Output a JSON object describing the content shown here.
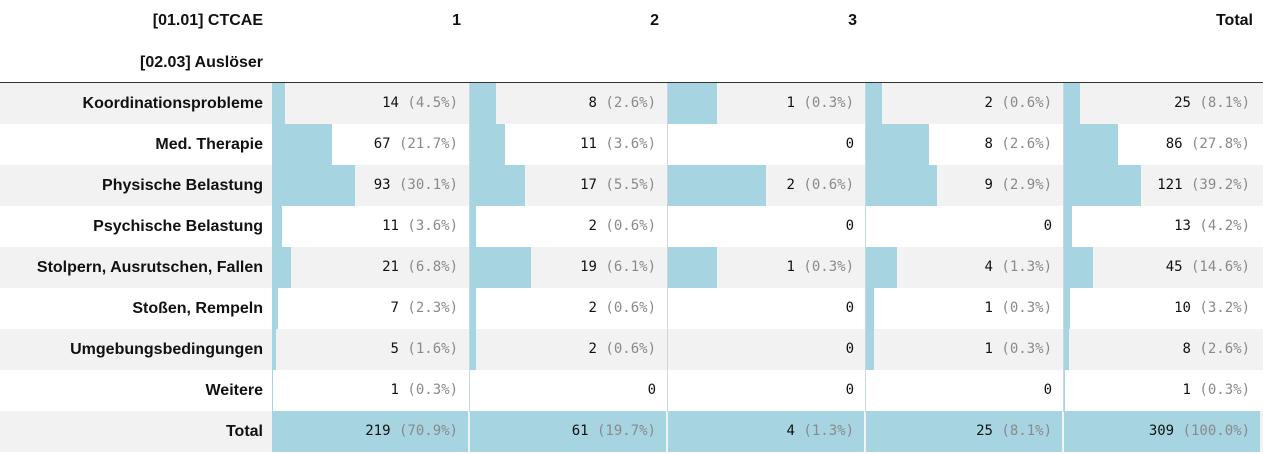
{
  "header": {
    "col_var": "[01.01] CTCAE",
    "row_var": "[02.03] Auslöser",
    "columns": [
      "1",
      "2",
      "3",
      "",
      "Total"
    ]
  },
  "rows": [
    {
      "label": "Koordinationsprobleme",
      "cells": [
        {
          "n": "14",
          "pct": "(4.5%)",
          "share": 0.0639
        },
        {
          "n": "8",
          "pct": "(2.6%)",
          "share": 0.1311
        },
        {
          "n": "1",
          "pct": "(0.3%)",
          "share": 0.25
        },
        {
          "n": "2",
          "pct": "(0.6%)",
          "share": 0.08
        },
        {
          "n": "25",
          "pct": "(8.1%)",
          "share": 0.081
        }
      ]
    },
    {
      "label": "Med. Therapie",
      "cells": [
        {
          "n": "67",
          "pct": "(21.7%)",
          "share": 0.3059
        },
        {
          "n": "11",
          "pct": "(3.6%)",
          "share": 0.1803
        },
        {
          "n": "0",
          "pct": "",
          "share": 0
        },
        {
          "n": "8",
          "pct": "(2.6%)",
          "share": 0.32
        },
        {
          "n": "86",
          "pct": "(27.8%)",
          "share": 0.278
        }
      ]
    },
    {
      "label": "Physische Belastung",
      "cells": [
        {
          "n": "93",
          "pct": "(30.1%)",
          "share": 0.4247
        },
        {
          "n": "17",
          "pct": "(5.5%)",
          "share": 0.2787
        },
        {
          "n": "2",
          "pct": "(0.6%)",
          "share": 0.5
        },
        {
          "n": "9",
          "pct": "(2.9%)",
          "share": 0.36
        },
        {
          "n": "121",
          "pct": "(39.2%)",
          "share": 0.392
        }
      ]
    },
    {
      "label": "Psychische Belastung",
      "cells": [
        {
          "n": "11",
          "pct": "(3.6%)",
          "share": 0.0502
        },
        {
          "n": "2",
          "pct": "(0.6%)",
          "share": 0.0328
        },
        {
          "n": "0",
          "pct": "",
          "share": 0
        },
        {
          "n": "0",
          "pct": "",
          "share": 0
        },
        {
          "n": "13",
          "pct": "(4.2%)",
          "share": 0.042
        }
      ]
    },
    {
      "label": "Stolpern, Ausrutschen, Fallen",
      "cells": [
        {
          "n": "21",
          "pct": "(6.8%)",
          "share": 0.0959
        },
        {
          "n": "19",
          "pct": "(6.1%)",
          "share": 0.3115
        },
        {
          "n": "1",
          "pct": "(0.3%)",
          "share": 0.25
        },
        {
          "n": "4",
          "pct": "(1.3%)",
          "share": 0.16
        },
        {
          "n": "45",
          "pct": "(14.6%)",
          "share": 0.146
        }
      ]
    },
    {
      "label": "Stoßen, Rempeln",
      "cells": [
        {
          "n": "7",
          "pct": "(2.3%)",
          "share": 0.032
        },
        {
          "n": "2",
          "pct": "(0.6%)",
          "share": 0.0328
        },
        {
          "n": "0",
          "pct": "",
          "share": 0
        },
        {
          "n": "1",
          "pct": "(0.3%)",
          "share": 0.04
        },
        {
          "n": "10",
          "pct": "(3.2%)",
          "share": 0.032
        }
      ]
    },
    {
      "label": "Umgebungsbedingungen",
      "cells": [
        {
          "n": "5",
          "pct": "(1.6%)",
          "share": 0.0228
        },
        {
          "n": "2",
          "pct": "(0.6%)",
          "share": 0.0328
        },
        {
          "n": "0",
          "pct": "",
          "share": 0
        },
        {
          "n": "1",
          "pct": "(0.3%)",
          "share": 0.04
        },
        {
          "n": "8",
          "pct": "(2.6%)",
          "share": 0.026
        }
      ]
    },
    {
      "label": "Weitere",
      "cells": [
        {
          "n": "1",
          "pct": "(0.3%)",
          "share": 0.0046
        },
        {
          "n": "0",
          "pct": "",
          "share": 0
        },
        {
          "n": "0",
          "pct": "",
          "share": 0
        },
        {
          "n": "0",
          "pct": "",
          "share": 0
        },
        {
          "n": "1",
          "pct": "(0.3%)",
          "share": 0.003
        }
      ]
    }
  ],
  "total_row": {
    "label": "Total",
    "cells": [
      {
        "n": "219",
        "pct": "(70.9%)"
      },
      {
        "n": "61",
        "pct": "(19.7%)"
      },
      {
        "n": "4",
        "pct": "(1.3%)"
      },
      {
        "n": "25",
        "pct": "(8.1%)"
      },
      {
        "n": "309",
        "pct": "(100.0%)"
      }
    ]
  },
  "colors": {
    "bar": "#a6d4e1",
    "stripe": "#f2f2f2",
    "pct_text": "#8a8a8a"
  }
}
